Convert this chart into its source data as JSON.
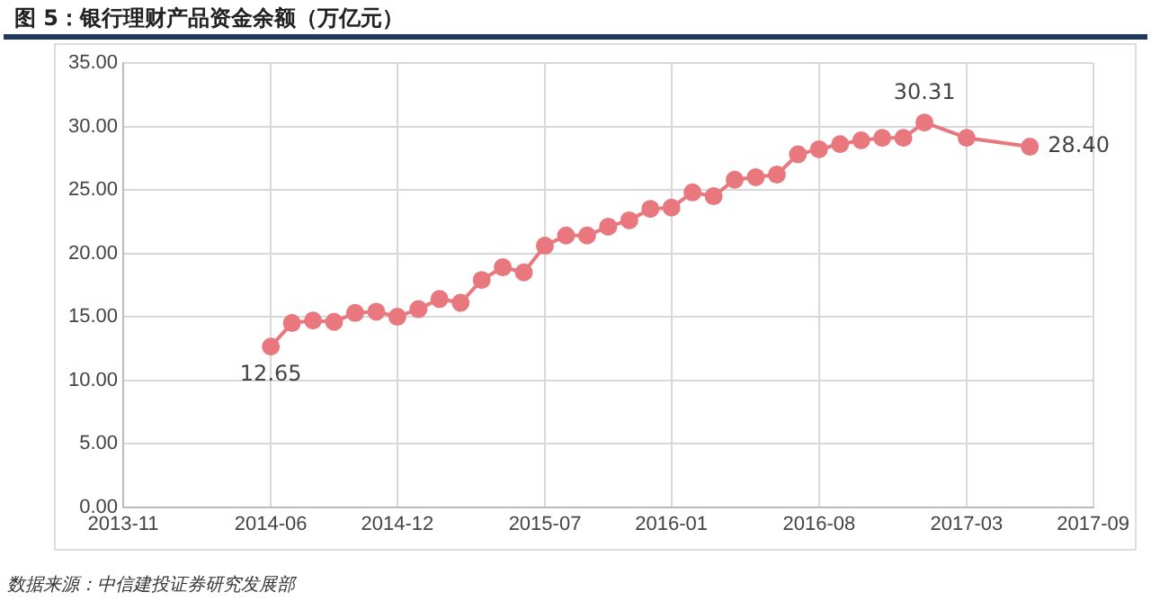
{
  "chart_data": {
    "type": "line",
    "title": "图 5：银行理财产品资金余额（万亿元）",
    "x": [
      "2014-06",
      "2014-07",
      "2014-08",
      "2014-09",
      "2014-10",
      "2014-11",
      "2014-12",
      "2015-01",
      "2015-02",
      "2015-03",
      "2015-04",
      "2015-05",
      "2015-06",
      "2015-07",
      "2015-08",
      "2015-09",
      "2015-10",
      "2015-11",
      "2015-12",
      "2016-01",
      "2016-02",
      "2016-03",
      "2016-04",
      "2016-05",
      "2016-06",
      "2016-07",
      "2016-08",
      "2016-09",
      "2016-10",
      "2016-11",
      "2016-12",
      "2017-01",
      "2017-03",
      "2017-06"
    ],
    "series": [
      {
        "color": "#e8787e",
        "values": [
          12.65,
          14.5,
          14.7,
          14.6,
          15.3,
          15.4,
          15.0,
          15.6,
          16.4,
          16.1,
          17.9,
          18.9,
          18.5,
          20.6,
          21.4,
          21.4,
          22.1,
          22.6,
          23.5,
          23.6,
          24.8,
          24.5,
          25.8,
          26.0,
          26.2,
          27.8,
          28.2,
          28.6,
          28.9,
          29.1,
          29.1,
          30.31,
          29.1,
          28.4
        ],
        "value_labels": [
          "12.65",
          null,
          null,
          null,
          null,
          null,
          null,
          null,
          null,
          null,
          null,
          null,
          null,
          null,
          null,
          null,
          null,
          null,
          null,
          null,
          null,
          null,
          null,
          null,
          null,
          null,
          null,
          null,
          null,
          null,
          null,
          "30.31",
          null,
          "28.40"
        ]
      }
    ],
    "xlim": [
      "2013-11",
      "2017-09"
    ],
    "xticks": [
      "2013-11",
      "2014-06",
      "2014-12",
      "2015-07",
      "2016-01",
      "2016-08",
      "2017-03",
      "2017-09"
    ],
    "ylim": [
      0,
      35
    ],
    "yticks": [
      {
        "value": 0,
        "label": "0.00"
      },
      {
        "value": 5,
        "label": "5.00"
      },
      {
        "value": 10,
        "label": "10.00"
      },
      {
        "value": 15,
        "label": "15.00"
      },
      {
        "value": 20,
        "label": "20.00"
      },
      {
        "value": 25,
        "label": "25.00"
      },
      {
        "value": 30,
        "label": "30.00"
      },
      {
        "value": 35,
        "label": "35.00"
      }
    ],
    "grid": true,
    "legend": false,
    "marker": "circle",
    "line_style": "solid",
    "annotations": [
      "数据来源：中信建投证券研究发展部"
    ]
  }
}
